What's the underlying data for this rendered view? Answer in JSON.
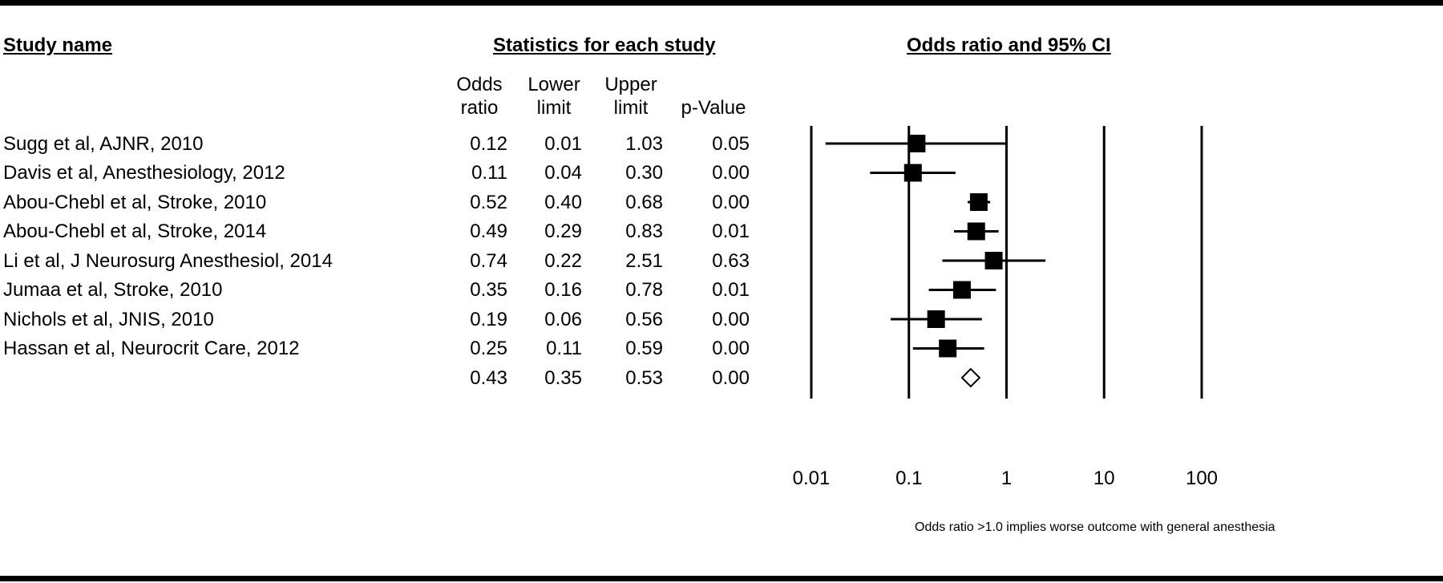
{
  "headers": {
    "study": "Study name",
    "stats": "Statistics for each study",
    "plot": "Odds ratio and 95% CI"
  },
  "columns": {
    "odds": [
      "Odds",
      "ratio"
    ],
    "lower": [
      "Lower",
      "limit"
    ],
    "upper": [
      "Upper",
      "limit"
    ],
    "pval": [
      "",
      "p-Value"
    ]
  },
  "rows": [
    {
      "name": "Sugg et al, AJNR, 2010",
      "or": "0.12",
      "lo": "0.01",
      "hi": "1.03",
      "p": "0.05"
    },
    {
      "name": "Davis et al, Anesthesiology, 2012",
      "or": "0.11",
      "lo": "0.04",
      "hi": "0.30",
      "p": "0.00"
    },
    {
      "name": "Abou-Chebl et al, Stroke, 2010",
      "or": "0.52",
      "lo": "0.40",
      "hi": "0.68",
      "p": "0.00"
    },
    {
      "name": "Abou-Chebl et al, Stroke, 2014",
      "or": "0.49",
      "lo": "0.29",
      "hi": "0.83",
      "p": "0.01"
    },
    {
      "name": "Li et al, J Neurosurg Anesthesiol, 2014",
      "or": "0.74",
      "lo": "0.22",
      "hi": "2.51",
      "p": "0.63"
    },
    {
      "name": "Jumaa et al, Stroke, 2010",
      "or": "0.35",
      "lo": "0.16",
      "hi": "0.78",
      "p": "0.01"
    },
    {
      "name": "Nichols et al, JNIS, 2010",
      "or": "0.19",
      "lo": "0.06",
      "hi": "0.56",
      "p": "0.00"
    },
    {
      "name": "Hassan et al, Neurocrit Care, 2012",
      "or": "0.25",
      "lo": "0.11",
      "hi": "0.59",
      "p": "0.00"
    },
    {
      "name": "",
      "or": "0.43",
      "lo": "0.35",
      "hi": "0.53",
      "p": "0.00"
    }
  ],
  "note": "Odds ratio >1.0 implies worse outcome with general anesthesia",
  "chart_data": {
    "type": "scatter",
    "subtype": "forest",
    "x_scale": "log",
    "xlim": [
      0.01,
      100
    ],
    "ticks": [
      0.01,
      0.1,
      1,
      10,
      100
    ],
    "tick_labels": [
      "0.01",
      "0.1",
      "1",
      "10",
      "100"
    ],
    "reference_lines": [
      0.01,
      0.1,
      1,
      10,
      100
    ],
    "studies": [
      {
        "odds_ratio": 0.12,
        "lower": 0.014,
        "upper": 1.03,
        "marker": "square",
        "weight": 1.0
      },
      {
        "odds_ratio": 0.11,
        "lower": 0.04,
        "upper": 0.3,
        "marker": "square",
        "weight": 1.0
      },
      {
        "odds_ratio": 0.52,
        "lower": 0.4,
        "upper": 0.68,
        "marker": "square",
        "weight": 1.0
      },
      {
        "odds_ratio": 0.49,
        "lower": 0.29,
        "upper": 0.83,
        "marker": "square",
        "weight": 1.0
      },
      {
        "odds_ratio": 0.74,
        "lower": 0.22,
        "upper": 2.51,
        "marker": "square",
        "weight": 1.0
      },
      {
        "odds_ratio": 0.35,
        "lower": 0.16,
        "upper": 0.78,
        "marker": "square",
        "weight": 1.0
      },
      {
        "odds_ratio": 0.19,
        "lower": 0.065,
        "upper": 0.56,
        "marker": "square",
        "weight": 1.0
      },
      {
        "odds_ratio": 0.25,
        "lower": 0.11,
        "upper": 0.59,
        "marker": "square",
        "weight": 1.0
      }
    ],
    "summary": {
      "odds_ratio": 0.43,
      "lower": 0.35,
      "upper": 0.53,
      "marker": "diamond"
    }
  }
}
